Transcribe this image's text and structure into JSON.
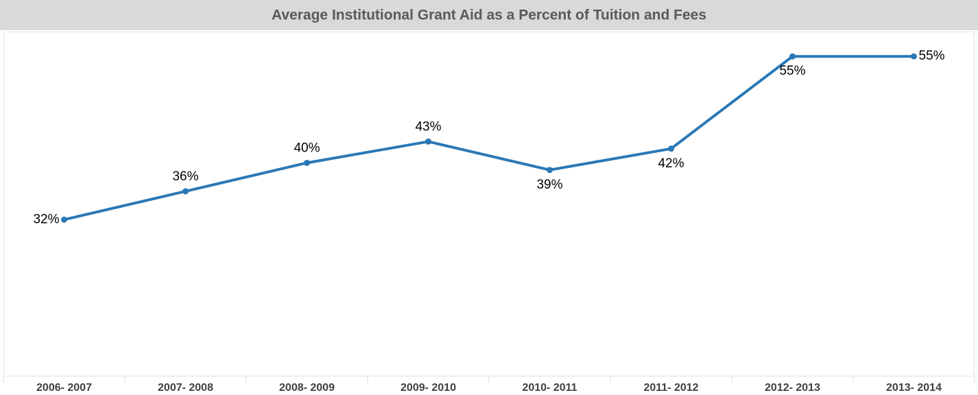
{
  "chart_data": {
    "type": "line",
    "title": "Average Institutional Grant Aid as a Percent of Tuition and Fees",
    "categories": [
      "2006- 2007",
      "2007- 2008",
      "2008- 2009",
      "2009- 2010",
      "2010- 2011",
      "2011- 2012",
      "2012- 2013",
      "2013- 2014"
    ],
    "series": [
      {
        "color": "#2a78b6",
        "values": [
          32,
          36,
          40,
          43,
          39,
          42,
          55,
          55
        ],
        "value_labels": [
          "32%",
          "36%",
          "40%",
          "43%",
          "39%",
          "42%",
          "55%",
          "55%"
        ]
      }
    ],
    "ylim": [
      10,
      58.5
    ]
  }
}
